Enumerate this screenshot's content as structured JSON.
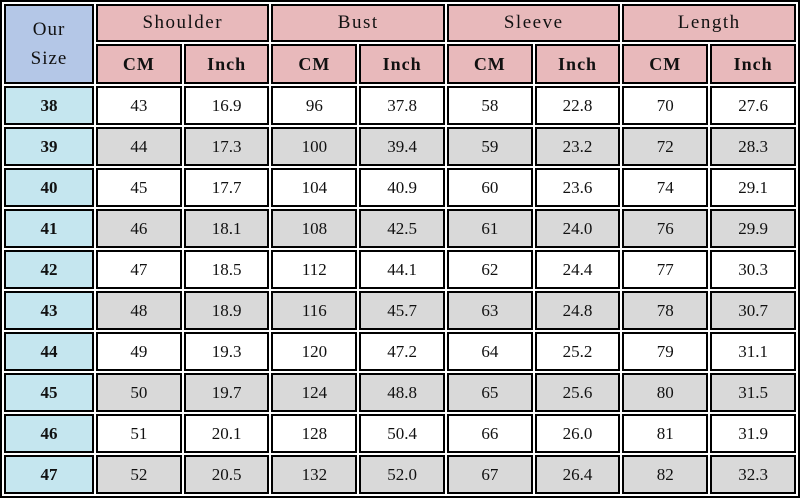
{
  "chart_data": {
    "type": "table",
    "corner_header": "Our\nSize",
    "column_groups": [
      {
        "label": "Shoulder"
      },
      {
        "label": "Bust"
      },
      {
        "label": "Sleeve"
      },
      {
        "label": "Length"
      }
    ],
    "unit_headers": [
      "CM",
      "Inch",
      "CM",
      "Inch",
      "CM",
      "Inch",
      "CM",
      "Inch"
    ],
    "rows": [
      {
        "size": "38",
        "values": [
          "43",
          "16.9",
          "96",
          "37.8",
          "58",
          "22.8",
          "70",
          "27.6"
        ]
      },
      {
        "size": "39",
        "values": [
          "44",
          "17.3",
          "100",
          "39.4",
          "59",
          "23.2",
          "72",
          "28.3"
        ]
      },
      {
        "size": "40",
        "values": [
          "45",
          "17.7",
          "104",
          "40.9",
          "60",
          "23.6",
          "74",
          "29.1"
        ]
      },
      {
        "size": "41",
        "values": [
          "46",
          "18.1",
          "108",
          "42.5",
          "61",
          "24.0",
          "76",
          "29.9"
        ]
      },
      {
        "size": "42",
        "values": [
          "47",
          "18.5",
          "112",
          "44.1",
          "62",
          "24.4",
          "77",
          "30.3"
        ]
      },
      {
        "size": "43",
        "values": [
          "48",
          "18.9",
          "116",
          "45.7",
          "63",
          "24.8",
          "78",
          "30.7"
        ]
      },
      {
        "size": "44",
        "values": [
          "49",
          "19.3",
          "120",
          "47.2",
          "64",
          "25.2",
          "79",
          "31.1"
        ]
      },
      {
        "size": "45",
        "values": [
          "50",
          "19.7",
          "124",
          "48.8",
          "65",
          "25.6",
          "80",
          "31.5"
        ]
      },
      {
        "size": "46",
        "values": [
          "51",
          "20.1",
          "128",
          "50.4",
          "66",
          "26.0",
          "81",
          "31.9"
        ]
      },
      {
        "size": "47",
        "values": [
          "52",
          "20.5",
          "132",
          "52.0",
          "67",
          "26.4",
          "82",
          "32.3"
        ]
      }
    ]
  },
  "colors": {
    "group_header_bg": "#e8b9bb",
    "corner_header_bg": "#b4c7e7",
    "size_cell_bg": "#c5e6ef",
    "alt_row_bg": "#d9d9d9",
    "row_bg": "#ffffff",
    "border": "#000000"
  }
}
